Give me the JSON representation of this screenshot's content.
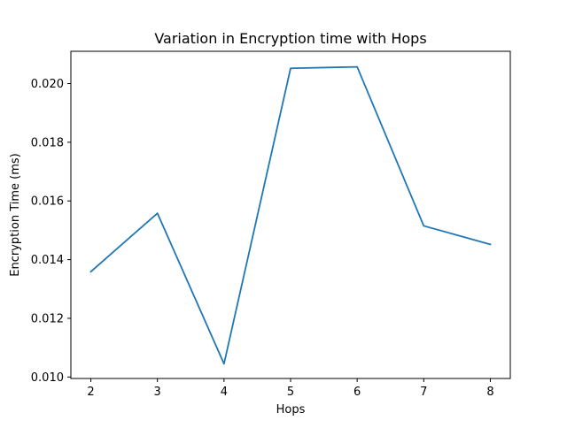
{
  "chart_data": {
    "type": "line",
    "title": "Variation in Encryption time with Hops",
    "xlabel": "Hops",
    "ylabel": "Encryption Time (ms)",
    "x": [
      2,
      3,
      4,
      5,
      6,
      7,
      8
    ],
    "series": [
      {
        "name": "",
        "color": "#1f77b4",
        "values": [
          0.01359,
          0.01558,
          0.01045,
          0.02052,
          0.02057,
          0.01515,
          0.01452
        ]
      }
    ],
    "xlim": [
      1.7,
      8.3
    ],
    "ylim": [
      0.00995,
      0.0211
    ],
    "xticks": [
      2,
      3,
      4,
      5,
      6,
      7,
      8
    ],
    "xtick_labels": [
      "2",
      "3",
      "4",
      "5",
      "6",
      "7",
      "8"
    ],
    "yticks": [
      0.01,
      0.012,
      0.014,
      0.016,
      0.018,
      0.02
    ],
    "ytick_labels": [
      "0.010",
      "0.012",
      "0.014",
      "0.016",
      "0.018",
      "0.020"
    ],
    "grid": false,
    "legend": false
  }
}
